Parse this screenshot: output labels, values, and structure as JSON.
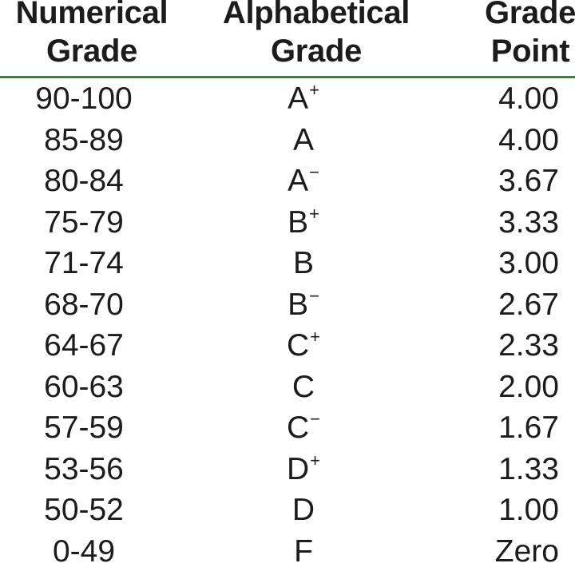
{
  "header": {
    "numerical": [
      "Numerical",
      "Grade"
    ],
    "alphabetical": [
      "Alphabetical",
      "Grade"
    ],
    "point": [
      "Grade",
      "Point"
    ]
  },
  "rows": [
    {
      "range": "90-100",
      "letter": "A",
      "modifier": "+",
      "point": "4.00"
    },
    {
      "range": "85-89",
      "letter": "A",
      "modifier": "",
      "point": "4.00"
    },
    {
      "range": "80-84",
      "letter": "A",
      "modifier": "−",
      "point": "3.67"
    },
    {
      "range": "75-79",
      "letter": "B",
      "modifier": "+",
      "point": "3.33"
    },
    {
      "range": "71-74",
      "letter": "B",
      "modifier": "",
      "point": "3.00"
    },
    {
      "range": "68-70",
      "letter": "B",
      "modifier": "−",
      "point": "2.67"
    },
    {
      "range": "64-67",
      "letter": "C",
      "modifier": "+",
      "point": "2.33"
    },
    {
      "range": "60-63",
      "letter": "C",
      "modifier": "",
      "point": "2.00"
    },
    {
      "range": "57-59",
      "letter": "C",
      "modifier": "−",
      "point": "1.67"
    },
    {
      "range": "53-56",
      "letter": "D",
      "modifier": "+",
      "point": "1.33"
    },
    {
      "range": "50-52",
      "letter": "D",
      "modifier": "",
      "point": "1.00"
    },
    {
      "range": "0-49",
      "letter": "F",
      "modifier": "",
      "point": "Zero"
    }
  ],
  "colors": {
    "rule": "#2e8b2e",
    "text": "#1c1c1c"
  }
}
